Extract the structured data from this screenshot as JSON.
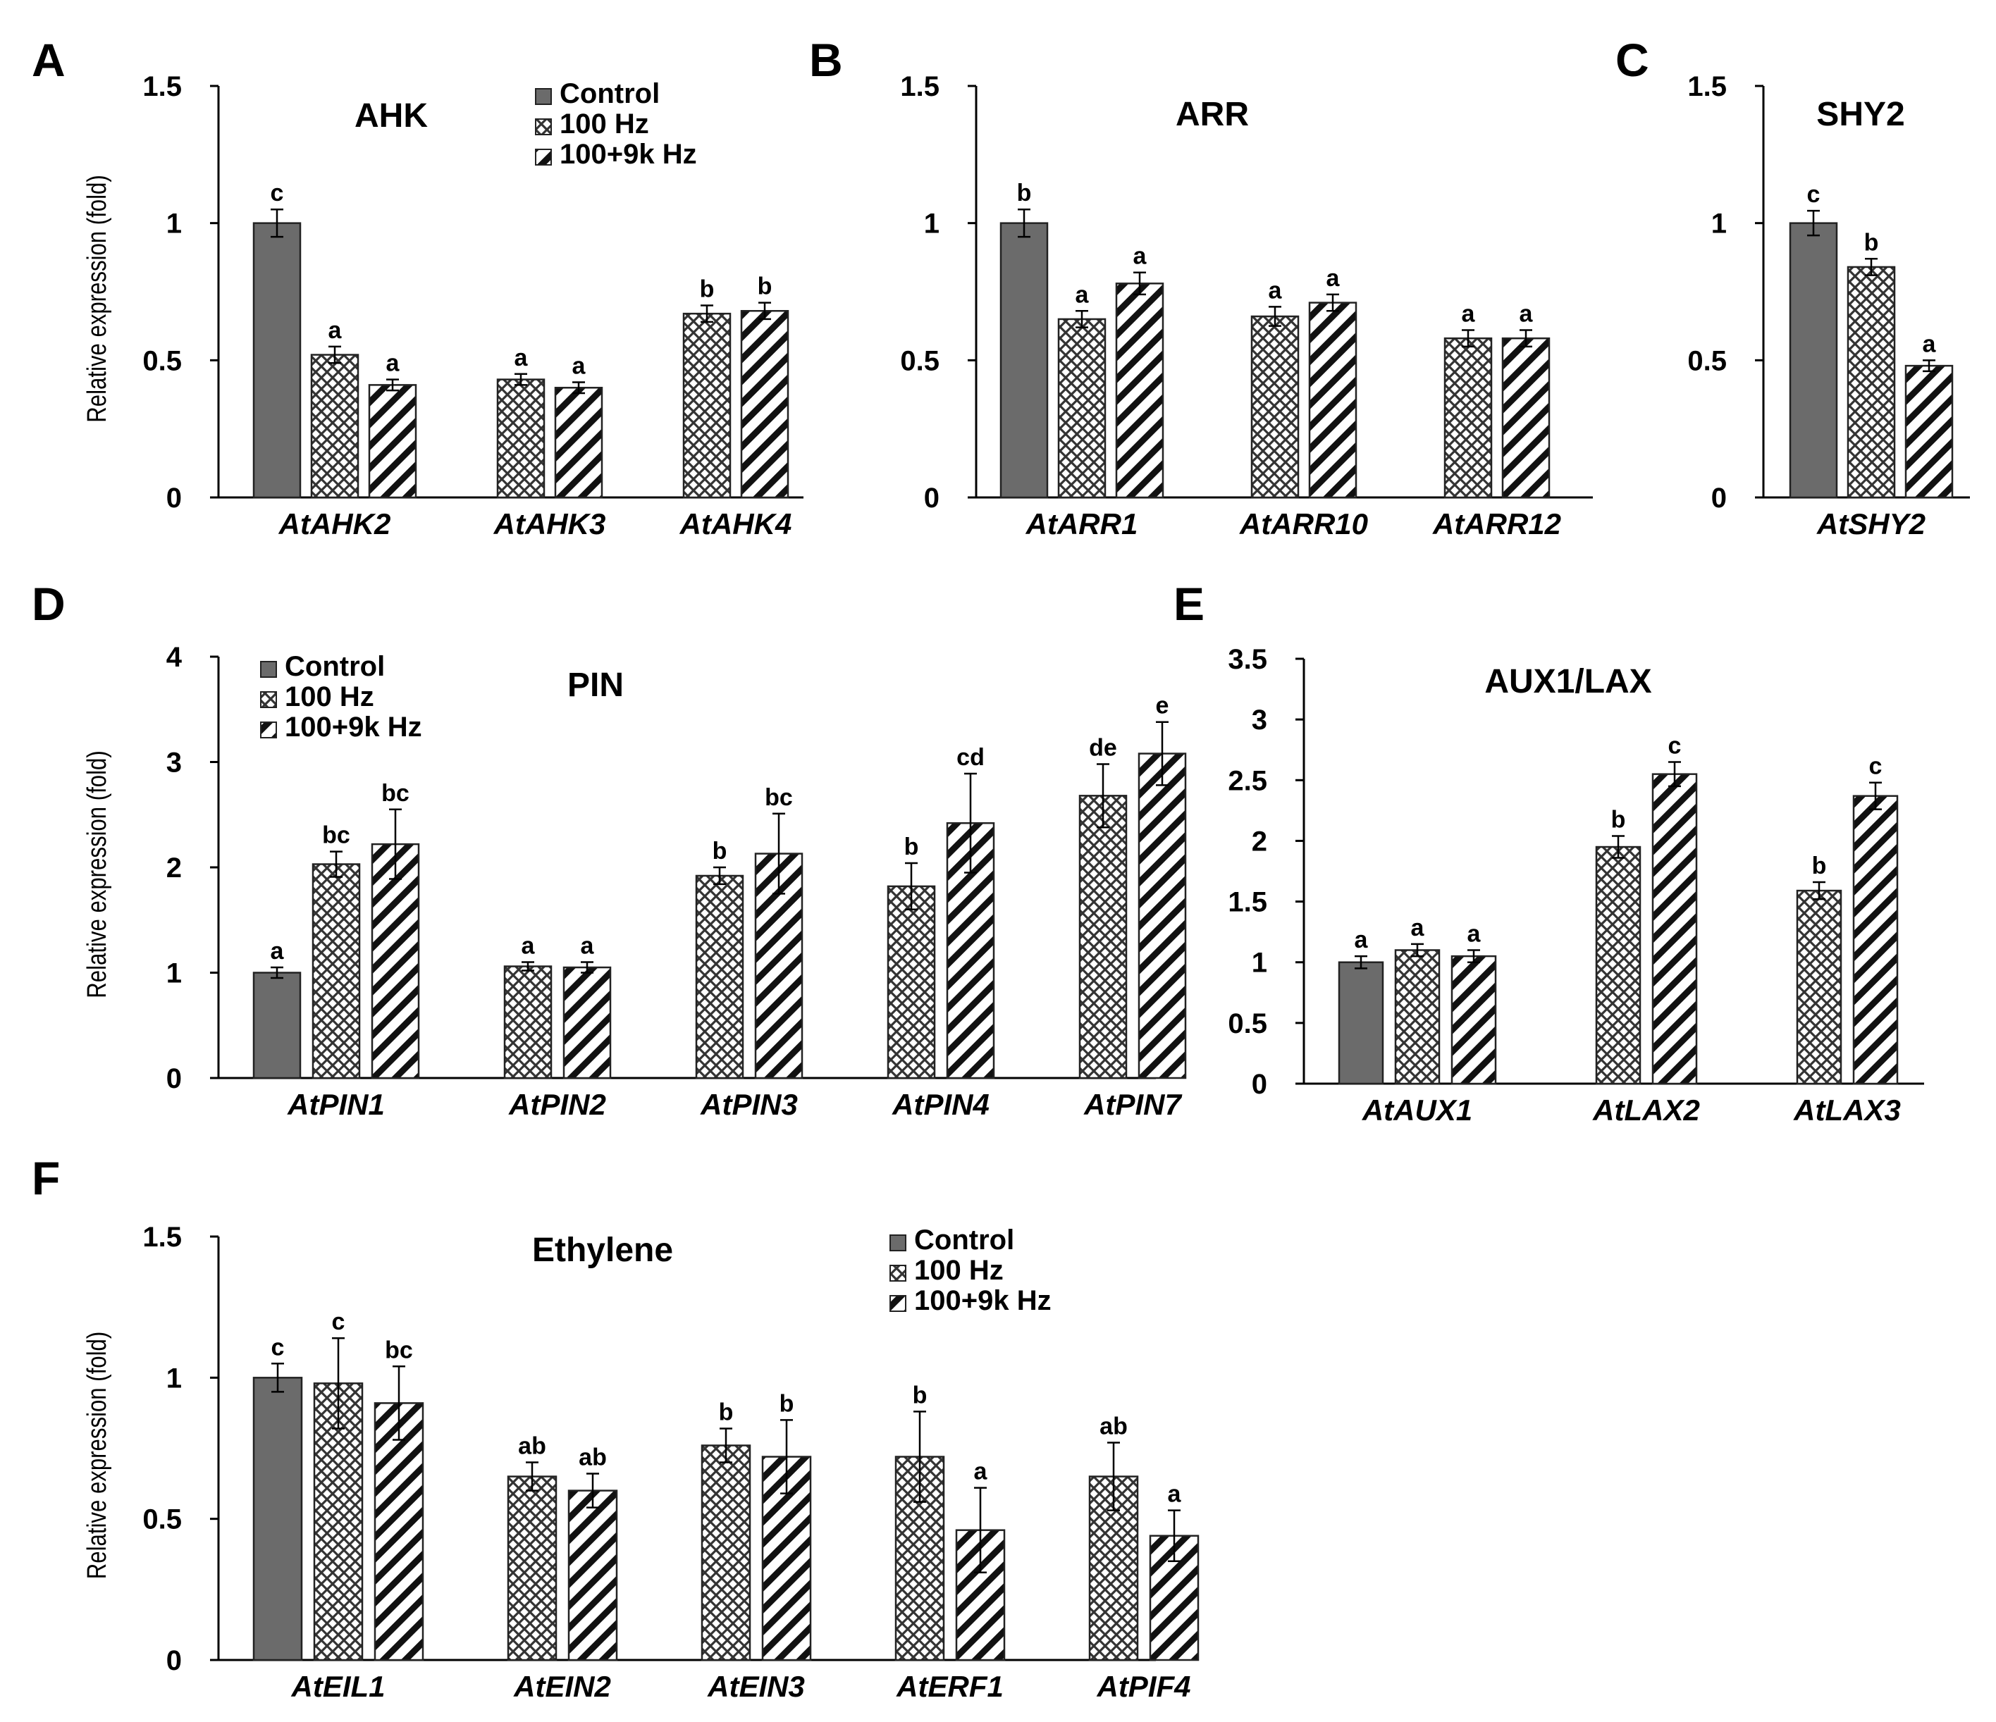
{
  "colors": {
    "control": "#6b6b6b",
    "hz100_pattern": "crosshatch",
    "hz100_9k_pattern": "diagonal-stripes"
  },
  "chart_data": [
    {
      "panel": "A",
      "type": "bar",
      "title": "AHK",
      "ylabel": "Relative expression  (fold)",
      "ylim": [
        0,
        1.5
      ],
      "yticks": [
        "0",
        "0.5",
        "1",
        "1.5"
      ],
      "legend_position": "top-right",
      "legend": [
        "Control",
        "100  Hz",
        "100+9k Hz"
      ],
      "groups": [
        {
          "label": "AtAHK2",
          "bars": [
            {
              "series": "Control",
              "value": 1.0,
              "err": 0.05,
              "sig": "c"
            },
            {
              "series": "100  Hz",
              "value": 0.52,
              "err": 0.03,
              "sig": "a"
            },
            {
              "series": "100+9k Hz",
              "value": 0.41,
              "err": 0.02,
              "sig": "a"
            }
          ]
        },
        {
          "label": "AtAHK3",
          "bars": [
            {
              "series": "100  Hz",
              "value": 0.43,
              "err": 0.02,
              "sig": "a"
            },
            {
              "series": "100+9k Hz",
              "value": 0.4,
              "err": 0.02,
              "sig": "a"
            }
          ]
        },
        {
          "label": "AtAHK4",
          "bars": [
            {
              "series": "100  Hz",
              "value": 0.67,
              "err": 0.03,
              "sig": "b"
            },
            {
              "series": "100+9k Hz",
              "value": 0.68,
              "err": 0.03,
              "sig": "b"
            }
          ]
        }
      ]
    },
    {
      "panel": "B",
      "type": "bar",
      "title": "ARR",
      "ylabel": "",
      "ylim": [
        0,
        1.5
      ],
      "yticks": [
        "0",
        "0.5",
        "1",
        "1.5"
      ],
      "legend": [],
      "groups": [
        {
          "label": "AtARR1",
          "bars": [
            {
              "series": "Control",
              "value": 1.0,
              "err": 0.05,
              "sig": "b"
            },
            {
              "series": "100  Hz",
              "value": 0.65,
              "err": 0.03,
              "sig": "a"
            },
            {
              "series": "100+9k Hz",
              "value": 0.78,
              "err": 0.04,
              "sig": "a"
            }
          ]
        },
        {
          "label": "AtARR10",
          "bars": [
            {
              "series": "100  Hz",
              "value": 0.66,
              "err": 0.035,
              "sig": "a"
            },
            {
              "series": "100+9k Hz",
              "value": 0.71,
              "err": 0.03,
              "sig": "a"
            }
          ]
        },
        {
          "label": "AtARR12",
          "bars": [
            {
              "series": "100  Hz",
              "value": 0.58,
              "err": 0.03,
              "sig": "a"
            },
            {
              "series": "100+9k Hz",
              "value": 0.58,
              "err": 0.03,
              "sig": "a"
            }
          ]
        }
      ]
    },
    {
      "panel": "C",
      "type": "bar",
      "title": "SHY2",
      "ylabel": "",
      "ylim": [
        0,
        1.5
      ],
      "yticks": [
        "0",
        "0.5",
        "1",
        "1.5"
      ],
      "legend": [],
      "groups": [
        {
          "label": "AtSHY2",
          "bars": [
            {
              "series": "Control",
              "value": 1.0,
              "err": 0.045,
              "sig": "c"
            },
            {
              "series": "100  Hz",
              "value": 0.84,
              "err": 0.03,
              "sig": "b"
            },
            {
              "series": "100+9k Hz",
              "value": 0.48,
              "err": 0.02,
              "sig": "a"
            }
          ]
        }
      ]
    },
    {
      "panel": "D",
      "type": "bar",
      "title": "PIN",
      "ylabel": "Relative expression  (fold)",
      "ylim": [
        0,
        4
      ],
      "yticks": [
        "0",
        "1",
        "2",
        "3",
        "4"
      ],
      "legend_position": "top-left",
      "legend": [
        "Control",
        "100 Hz",
        "100+9k Hz"
      ],
      "groups": [
        {
          "label": "AtPIN1",
          "bars": [
            {
              "series": "Control",
              "value": 1.0,
              "err": 0.05,
              "sig": "a"
            },
            {
              "series": "100 Hz",
              "value": 2.03,
              "err": 0.12,
              "sig": "bc"
            },
            {
              "series": "100+9k Hz",
              "value": 2.22,
              "err": 0.33,
              "sig": "bc"
            }
          ]
        },
        {
          "label": "AtPIN2",
          "bars": [
            {
              "series": "100 Hz",
              "value": 1.06,
              "err": 0.04,
              "sig": "a"
            },
            {
              "series": "100+9k Hz",
              "value": 1.05,
              "err": 0.05,
              "sig": "a"
            }
          ]
        },
        {
          "label": "AtPIN3",
          "bars": [
            {
              "series": "100 Hz",
              "value": 1.92,
              "err": 0.08,
              "sig": "b"
            },
            {
              "series": "100+9k Hz",
              "value": 2.13,
              "err": 0.38,
              "sig": "bc"
            }
          ]
        },
        {
          "label": "AtPIN4",
          "bars": [
            {
              "series": "100 Hz",
              "value": 1.82,
              "err": 0.22,
              "sig": "b"
            },
            {
              "series": "100+9k Hz",
              "value": 2.42,
              "err": 0.47,
              "sig": "cd"
            }
          ]
        },
        {
          "label": "AtPIN7",
          "bars": [
            {
              "series": "100 Hz",
              "value": 2.68,
              "err": 0.3,
              "sig": "de"
            },
            {
              "series": "100+9k Hz",
              "value": 3.08,
              "err": 0.3,
              "sig": "e"
            }
          ]
        }
      ]
    },
    {
      "panel": "E",
      "type": "bar",
      "title": "AUX1/LAX",
      "ylabel": "",
      "ylim": [
        0,
        3.5
      ],
      "yticks": [
        "0",
        "0.5",
        "1",
        "1.5",
        "2",
        "2.5",
        "3",
        "3.5"
      ],
      "legend": [],
      "groups": [
        {
          "label": "AtAUX1",
          "bars": [
            {
              "series": "Control",
              "value": 1.0,
              "err": 0.05,
              "sig": "a"
            },
            {
              "series": "100 Hz",
              "value": 1.1,
              "err": 0.05,
              "sig": "a"
            },
            {
              "series": "100+9k Hz",
              "value": 1.05,
              "err": 0.05,
              "sig": "a"
            }
          ]
        },
        {
          "label": "AtLAX2",
          "bars": [
            {
              "series": "100 Hz",
              "value": 1.95,
              "err": 0.09,
              "sig": "b"
            },
            {
              "series": "100+9k Hz",
              "value": 2.55,
              "err": 0.1,
              "sig": "c"
            }
          ]
        },
        {
          "label": "AtLAX3",
          "bars": [
            {
              "series": "100 Hz",
              "value": 1.59,
              "err": 0.07,
              "sig": "b"
            },
            {
              "series": "100+9k Hz",
              "value": 2.37,
              "err": 0.11,
              "sig": "c"
            }
          ]
        }
      ]
    },
    {
      "panel": "F",
      "type": "bar",
      "title": "Ethylene",
      "ylabel": "Relative expression  (fold)",
      "ylim": [
        0,
        1.5
      ],
      "yticks": [
        "0",
        "0.5",
        "1",
        "1.5"
      ],
      "legend_position": "top-right",
      "legend": [
        "Control",
        "100 Hz",
        "100+9k Hz"
      ],
      "groups": [
        {
          "label": "AtEIL1",
          "bars": [
            {
              "series": "Control",
              "value": 1.0,
              "err": 0.05,
              "sig": "c"
            },
            {
              "series": "100 Hz",
              "value": 0.98,
              "err": 0.16,
              "sig": "c"
            },
            {
              "series": "100+9k Hz",
              "value": 0.91,
              "err": 0.13,
              "sig": "bc"
            }
          ]
        },
        {
          "label": "AtEIN2",
          "bars": [
            {
              "series": "100 Hz",
              "value": 0.65,
              "err": 0.05,
              "sig": "ab"
            },
            {
              "series": "100+9k Hz",
              "value": 0.6,
              "err": 0.06,
              "sig": "ab"
            }
          ]
        },
        {
          "label": "AtEIN3",
          "bars": [
            {
              "series": "100 Hz",
              "value": 0.76,
              "err": 0.06,
              "sig": "b"
            },
            {
              "series": "100+9k Hz",
              "value": 0.72,
              "err": 0.13,
              "sig": "b"
            }
          ]
        },
        {
          "label": "AtERF1",
          "bars": [
            {
              "series": "100 Hz",
              "value": 0.72,
              "err": 0.16,
              "sig": "b"
            },
            {
              "series": "100+9k Hz",
              "value": 0.46,
              "err": 0.15,
              "sig": "a"
            }
          ]
        },
        {
          "label": "AtPIF4",
          "bars": [
            {
              "series": "100 Hz",
              "value": 0.65,
              "err": 0.12,
              "sig": "ab"
            },
            {
              "series": "100+9k Hz",
              "value": 0.44,
              "err": 0.09,
              "sig": "a"
            }
          ]
        }
      ]
    }
  ]
}
